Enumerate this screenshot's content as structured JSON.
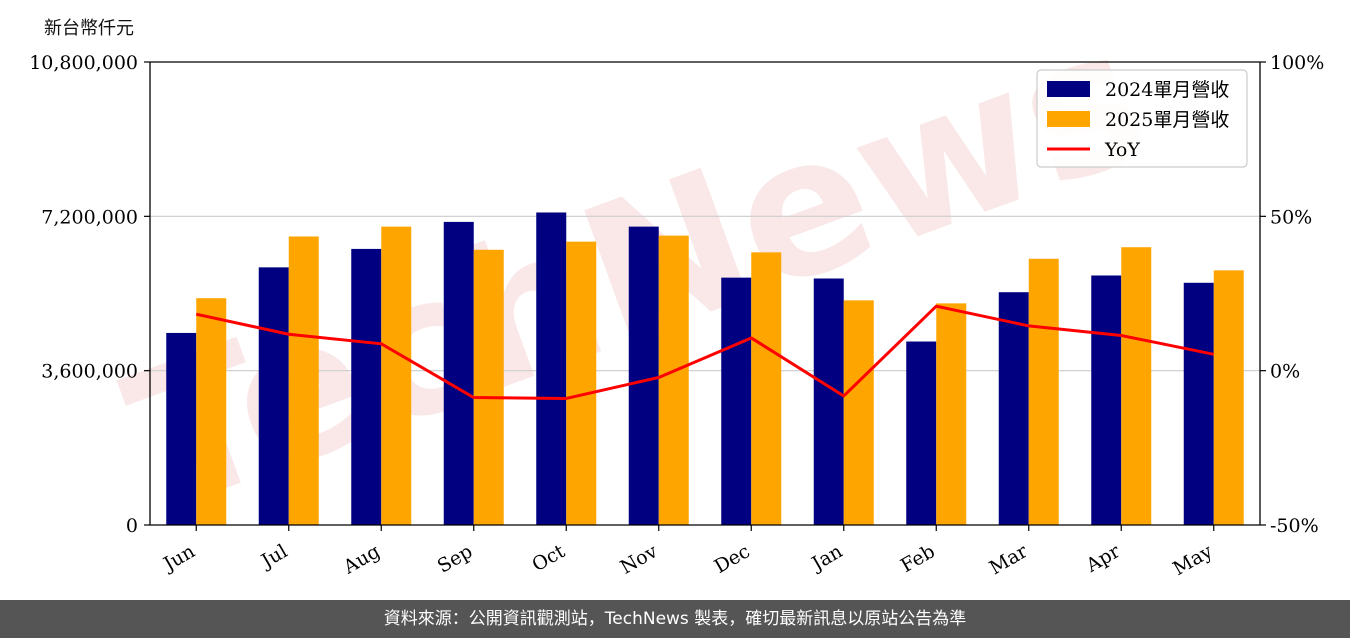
{
  "chart_data": {
    "type": "bar",
    "unit_label": "新台幣仟元",
    "categories": [
      "Jun",
      "Jul",
      "Aug",
      "Sep",
      "Oct",
      "Nov",
      "Dec",
      "Jan",
      "Feb",
      "Mar",
      "Apr",
      "May"
    ],
    "series": [
      {
        "name": "2024單月營收",
        "type": "bar",
        "color": "#000080",
        "values": [
          4480000,
          6010000,
          6440000,
          7070000,
          7290000,
          6960000,
          5770000,
          5750000,
          4280000,
          5430000,
          5820000,
          5650000
        ]
      },
      {
        "name": "2025單月營收",
        "type": "bar",
        "color": "#FFA500",
        "values": [
          5290000,
          6730000,
          6960000,
          6420000,
          6610000,
          6750000,
          6360000,
          5240000,
          5170000,
          6210000,
          6480000,
          5940000
        ]
      },
      {
        "name": "YoY",
        "type": "line",
        "axis": "right",
        "color": "#FF0000",
        "values": [
          18.3,
          11.8,
          8.7,
          -8.7,
          -9.0,
          -2.2,
          10.6,
          -8.2,
          20.9,
          14.5,
          11.4,
          5.3
        ]
      }
    ],
    "y_left": {
      "ylim": [
        0,
        10800000
      ],
      "ticks": [
        0,
        3600000,
        7200000,
        10800000
      ],
      "tick_labels": [
        "0",
        "3,600,000",
        "7,200,000",
        "10,800,000"
      ]
    },
    "y_right": {
      "ylim": [
        -50,
        100
      ],
      "ticks": [
        -50,
        0,
        50,
        100
      ],
      "tick_labels": [
        "-50%",
        "0%",
        "50%",
        "100%"
      ]
    },
    "grid": "horizontal",
    "legend": "top-right",
    "watermark": "TechNews"
  },
  "footer": {
    "source": "資料來源：公開資訊觀測站，TechNews 製表，確切最新訊息以原站公告為準"
  }
}
